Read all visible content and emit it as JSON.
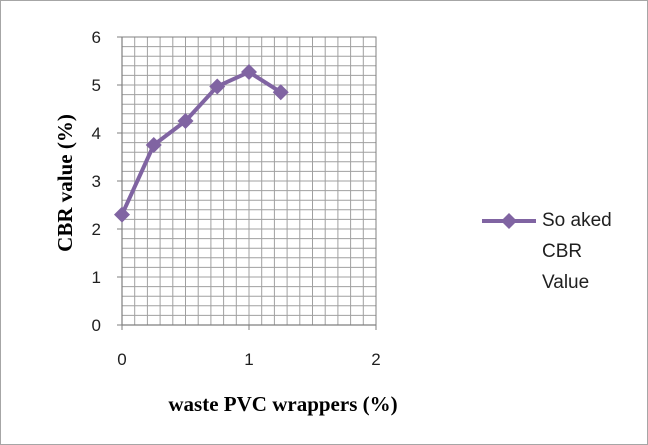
{
  "chart_data": {
    "type": "line",
    "title": "",
    "xlabel": "waste PVC wrappers (%)",
    "ylabel": "CBR value (%)",
    "xlim": [
      0,
      2
    ],
    "ylim": [
      0,
      6
    ],
    "x_ticks": [
      "0",
      "1",
      "2"
    ],
    "y_ticks": [
      "0",
      "1",
      "2",
      "3",
      "4",
      "5",
      "6"
    ],
    "grid": true,
    "legend_position": "right",
    "series": [
      {
        "name": "Soaked CBR Value",
        "color": "#8064a2",
        "marker": "diamond",
        "x": [
          0,
          0.25,
          0.5,
          0.75,
          1.0,
          1.25
        ],
        "y": [
          2.3,
          3.75,
          4.25,
          4.97,
          5.27,
          4.85
        ]
      }
    ]
  },
  "legend": {
    "lines": [
      "So aked",
      "CBR",
      "Value"
    ]
  }
}
